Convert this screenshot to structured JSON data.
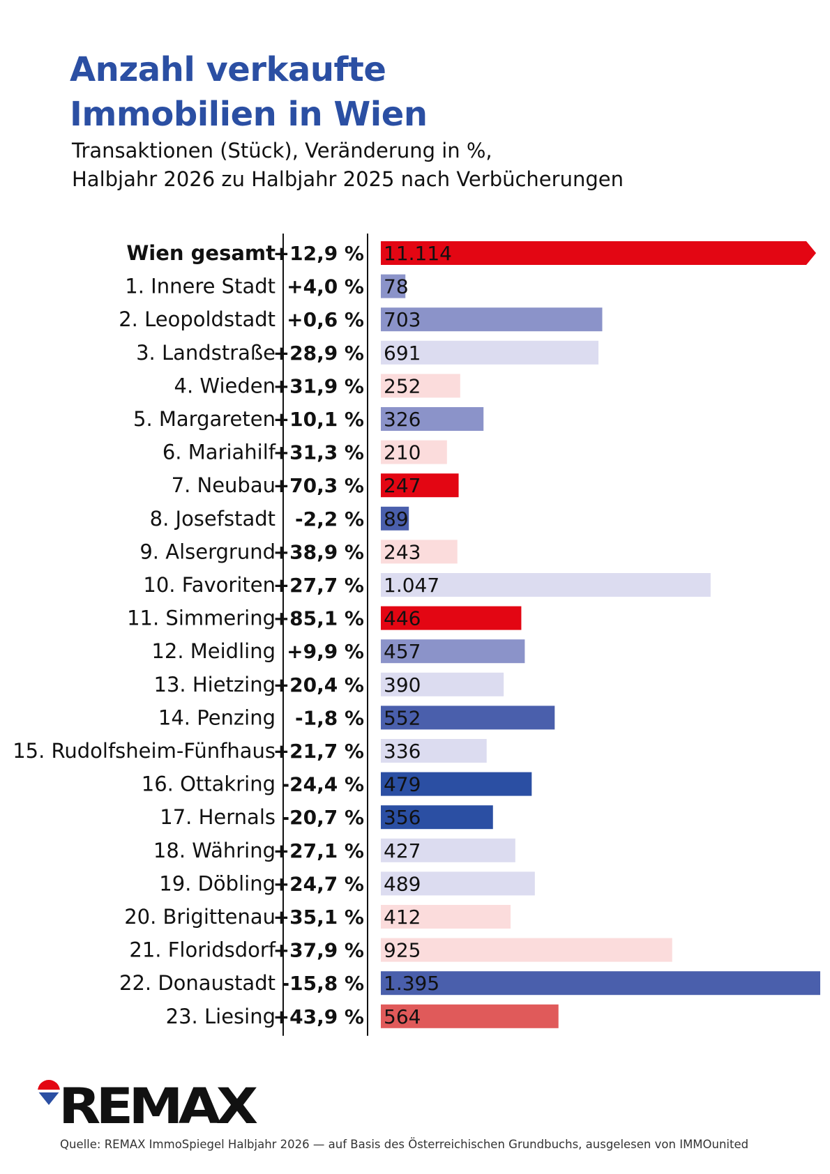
{
  "title_lines": [
    "Anzahl verkaufte",
    "Immobilien in Wien"
  ],
  "subtitle_lines": [
    "Transaktionen (Stück), Veränderung in %,",
    "Halbjahr 2026 zu Halbjahr 2025 nach Verbücherungen"
  ],
  "brand": {
    "logo_text": "REMAX",
    "logo_icon": "balloon-icon"
  },
  "source": "Quelle: REMAX ImmoSpiegel Halbjahr 2026 — auf Basis des Österreichischen Grundbuchs, ausgelesen von IMMOunited",
  "colors": {
    "strong_positive": "#e30613",
    "positive": "#e05a5a",
    "light_positive": "#fbdcdc",
    "light_negative": "#dcdcf0",
    "medium_negative": "#8b93c9",
    "strong_negative": "#4a5fac",
    "darkest_negative": "#2b4fa3",
    "axis": "#111111"
  },
  "chart_data": {
    "type": "bar",
    "orientation": "horizontal",
    "title": "Anzahl verkaufte Immobilien in Wien",
    "categories": [
      "Wien gesamt",
      "1. Innere Stadt",
      "2. Leopoldstadt",
      "3. Landstraße",
      "4. Wieden",
      "5. Margareten",
      "6. Mariahilf",
      "7. Neubau",
      "8. Josefstadt",
      "9. Alsergrund",
      "10. Favoriten",
      "11. Simmering",
      "12. Meidling",
      "13. Hietzing",
      "14. Penzing",
      "15. Rudolfsheim-Fünfhaus",
      "16. Ottakring",
      "17. Hernals",
      "18. Währing",
      "19. Döbling",
      "20. Brigittenau",
      "21. Floridsdorf",
      "22. Donaustadt",
      "23. Liesing"
    ],
    "values": [
      11114,
      78,
      703,
      691,
      252,
      326,
      210,
      247,
      89,
      243,
      1047,
      446,
      457,
      390,
      552,
      336,
      479,
      356,
      427,
      489,
      412,
      925,
      1395,
      564
    ],
    "value_labels": [
      "11.114",
      "78",
      "703",
      "691",
      "252",
      "326",
      "210",
      "247",
      "89",
      "243",
      "1.047",
      "446",
      "457",
      "390",
      "552",
      "336",
      "479",
      "356",
      "427",
      "489",
      "412",
      "925",
      "1.395",
      "564"
    ],
    "change_labels": [
      "+12,9 %",
      "+4,0 %",
      "+0,6 %",
      "+28,9 %",
      "+31,9 %",
      "+10,1 %",
      "+31,3 %",
      "+70,3 %",
      "-2,2 %",
      "+38,9 %",
      "+27,7 %",
      "+85,1 %",
      "+9,9 %",
      "+20,4 %",
      "-1,8 %",
      "+21,7 %",
      "-24,4 %",
      "-20,7 %",
      "+27,1 %",
      "+24,7 %",
      "+35,1 %",
      "+37,9 %",
      "-15,8 %",
      "+43,9 %"
    ],
    "change_percent": [
      12.9,
      4.0,
      0.6,
      28.9,
      31.9,
      10.1,
      31.3,
      70.3,
      -2.2,
      38.9,
      27.7,
      85.1,
      9.9,
      20.4,
      -1.8,
      21.7,
      -24.4,
      -20.7,
      27.1,
      24.7,
      35.1,
      37.9,
      -15.8,
      43.9
    ],
    "bar_colors": [
      "#e30613",
      "#8b93c9",
      "#8b93c9",
      "#dcdcf0",
      "#fbdcdc",
      "#8b93c9",
      "#fbdcdc",
      "#e30613",
      "#4a5fac",
      "#fbdcdc",
      "#dcdcf0",
      "#e30613",
      "#8b93c9",
      "#dcdcf0",
      "#4a5fac",
      "#dcdcf0",
      "#2b4fa3",
      "#2b4fa3",
      "#dcdcf0",
      "#dcdcf0",
      "#fbdcdc",
      "#fbdcdc",
      "#4a5fac",
      "#e05a5a"
    ],
    "bold_rows": [
      0
    ],
    "truncated_rows": [
      0
    ],
    "xlim": [
      0,
      1395
    ],
    "grid": false,
    "legend": "none"
  }
}
